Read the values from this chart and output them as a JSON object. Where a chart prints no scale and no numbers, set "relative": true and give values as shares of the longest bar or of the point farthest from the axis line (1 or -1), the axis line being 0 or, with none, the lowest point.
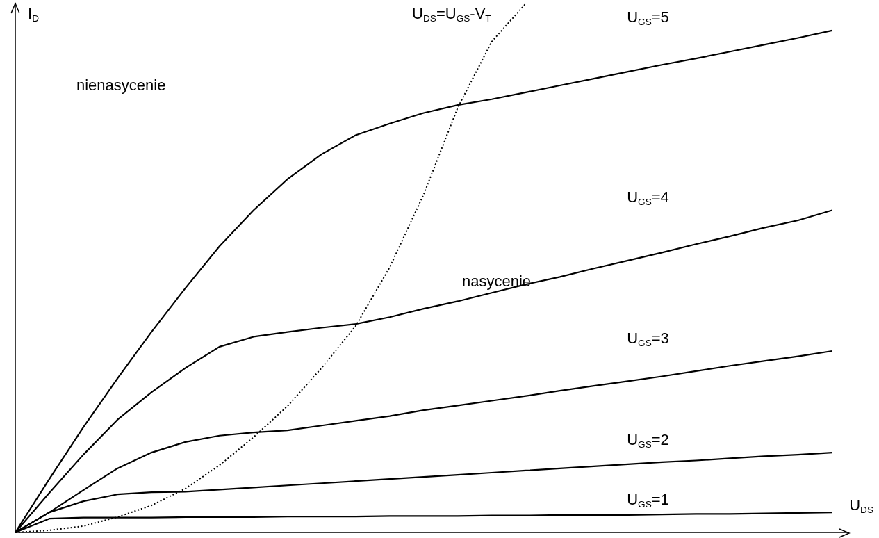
{
  "chart_data": {
    "type": "line",
    "relative": true,
    "xlabel": "U$_{DS}$",
    "ylabel": "I$_{D}$",
    "categories": [
      null,
      null,
      null,
      null,
      null,
      null,
      null,
      null,
      null,
      null,
      null,
      null,
      null,
      null,
      null,
      null,
      null,
      null,
      null,
      null,
      null,
      null,
      null,
      null,
      null
    ],
    "annotations": [
      "nienasycenie",
      "nasycenie"
    ],
    "series": [
      {
        "name": "U$_{GS}$=5",
        "color": "#000000",
        "values": [
          0,
          0.101,
          0.199,
          0.291,
          0.379,
          0.462,
          0.541,
          0.609,
          0.668,
          0.715,
          0.751,
          0.773,
          0.793,
          0.808,
          0.819,
          0.832,
          0.845,
          0.858,
          0.871,
          0.884,
          0.896,
          0.909,
          0.922,
          0.935,
          0.949
        ]
      },
      {
        "name": "U$_{GS}$=4",
        "color": "#000000",
        "values": [
          0,
          0.075,
          0.147,
          0.213,
          0.265,
          0.311,
          0.351,
          0.37,
          0.379,
          0.387,
          0.394,
          0.407,
          0.423,
          0.437,
          0.453,
          0.469,
          0.483,
          0.499,
          0.514,
          0.529,
          0.545,
          0.56,
          0.576,
          0.59,
          0.609
        ]
      },
      {
        "name": "U$_{GS}$=3",
        "color": "#000000",
        "values": [
          0,
          0.038,
          0.08,
          0.121,
          0.151,
          0.171,
          0.183,
          0.189,
          0.193,
          0.202,
          0.211,
          0.22,
          0.231,
          0.24,
          0.249,
          0.258,
          0.268,
          0.277,
          0.286,
          0.295,
          0.305,
          0.315,
          0.324,
          0.333,
          0.343
        ]
      },
      {
        "name": "U$_{GS}$=2",
        "color": "#000000",
        "values": [
          0,
          0.038,
          0.059,
          0.072,
          0.076,
          0.077,
          0.081,
          0.085,
          0.089,
          0.093,
          0.097,
          0.101,
          0.105,
          0.109,
          0.113,
          0.117,
          0.121,
          0.125,
          0.129,
          0.133,
          0.136,
          0.14,
          0.144,
          0.147,
          0.151
        ]
      },
      {
        "name": "U$_{GS}$=1",
        "color": "#000000",
        "values": [
          0,
          0.026,
          0.028,
          0.028,
          0.028,
          0.029,
          0.029,
          0.029,
          0.03,
          0.03,
          0.03,
          0.031,
          0.031,
          0.031,
          0.032,
          0.032,
          0.033,
          0.033,
          0.033,
          0.034,
          0.035,
          0.035,
          0.036,
          0.037,
          0.038
        ]
      },
      {
        "name": "U$_{DS}$=U$_{GS}$-V$_{T}$",
        "color": "#000000",
        "line_style": "dotted",
        "values": [
          0,
          0.004,
          0.012,
          0.029,
          0.051,
          0.083,
          0.127,
          0.18,
          0.239,
          0.311,
          0.39,
          0.501,
          0.639,
          0.803,
          0.928,
          1,
          null,
          null,
          null,
          null,
          null,
          null,
          null,
          null,
          null
        ]
      }
    ]
  }
}
